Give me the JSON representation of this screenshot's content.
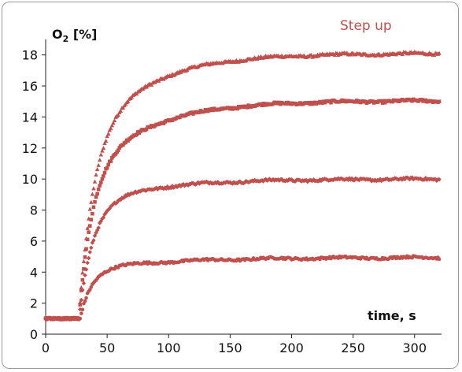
{
  "chart_data": {
    "type": "scatter",
    "title": "",
    "annotation": "Step up",
    "ylabel_main": "O",
    "ylabel_sub": "2",
    "ylabel_rest": " [%]",
    "xlabel": "time, s",
    "xlim": [
      0,
      320
    ],
    "ylim": [
      0,
      19
    ],
    "xticks": [
      0,
      50,
      100,
      150,
      200,
      250,
      300
    ],
    "yticks": [
      0,
      2,
      4,
      6,
      8,
      10,
      12,
      14,
      16,
      18
    ],
    "marker_color": "#c0504d",
    "series": [
      {
        "marker": "triangle",
        "baseline": 1.0,
        "t0": 27,
        "final": 18.1,
        "tau_fast": 11,
        "frac_fast": 0.62,
        "tau_slow": 48
      },
      {
        "marker": "square",
        "baseline": 1.0,
        "t0": 27,
        "final": 15.05,
        "tau_fast": 10,
        "frac_fast": 0.62,
        "tau_slow": 50
      },
      {
        "marker": "diamond",
        "baseline": 1.0,
        "t0": 27,
        "final": 10.0,
        "tau_fast": 11,
        "frac_fast": 0.8,
        "tau_slow": 55
      },
      {
        "marker": "circle",
        "baseline": 1.0,
        "t0": 28,
        "final": 4.95,
        "tau_fast": 9,
        "frac_fast": 0.8,
        "tau_slow": 70
      }
    ]
  }
}
